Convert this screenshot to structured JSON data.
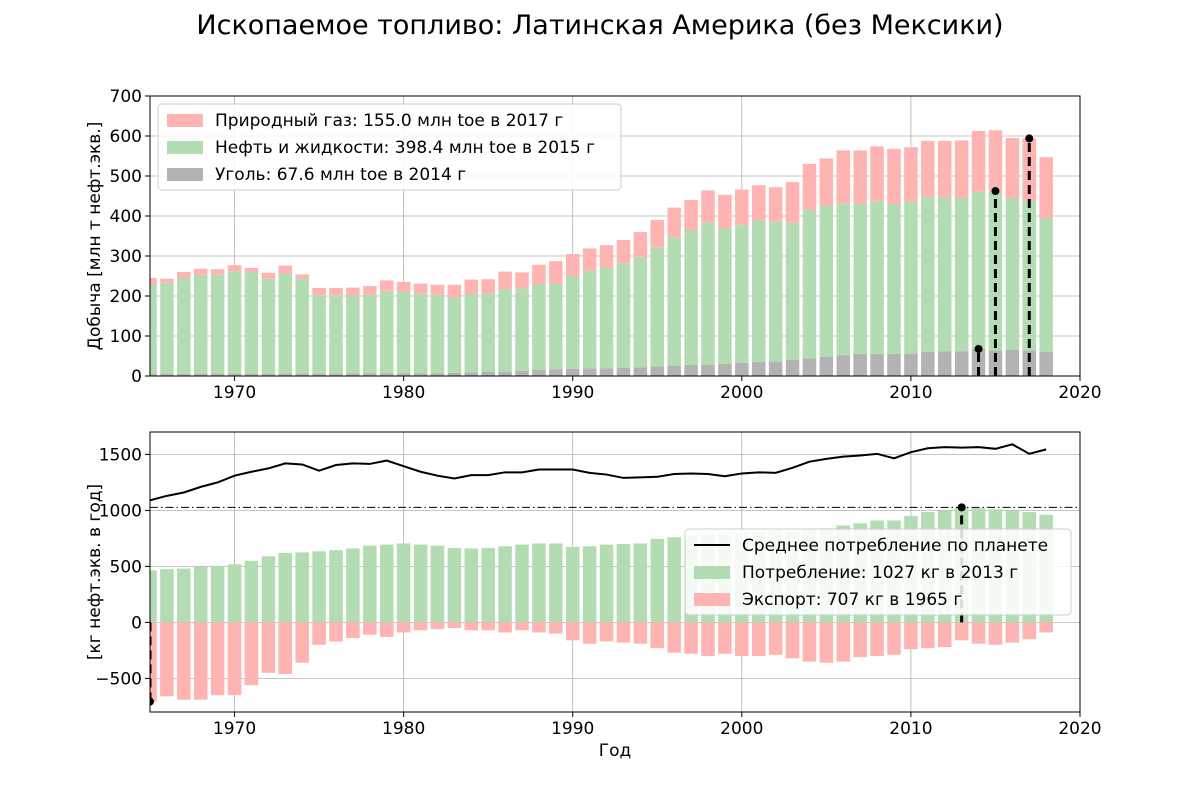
{
  "figure_title": "Ископаемое топливо: Латинская Америка (без Мексики)",
  "chart_data": [
    {
      "type": "bar",
      "stacked": true,
      "ylabel": "Добыча [млн т нефт.экв.]",
      "xlabel": "",
      "xlim": [
        1965,
        2020
      ],
      "ylim": [
        0,
        700
      ],
      "xticks": [
        1970,
        1980,
        1990,
        2000,
        2010,
        2020
      ],
      "yticks": [
        0,
        100,
        200,
        300,
        400,
        500,
        600,
        700
      ],
      "grid": true,
      "legend_position": "top-left",
      "x": [
        1965,
        1966,
        1967,
        1968,
        1969,
        1970,
        1971,
        1972,
        1973,
        1974,
        1975,
        1976,
        1977,
        1978,
        1979,
        1980,
        1981,
        1982,
        1983,
        1984,
        1985,
        1986,
        1987,
        1988,
        1989,
        1990,
        1991,
        1992,
        1993,
        1994,
        1995,
        1996,
        1997,
        1998,
        1999,
        2000,
        2001,
        2002,
        2003,
        2004,
        2005,
        2006,
        2007,
        2008,
        2009,
        2010,
        2011,
        2012,
        2013,
        2014,
        2015,
        2016,
        2017,
        2018
      ],
      "series": [
        {
          "name": "Уголь: 67.6 млн toe в 2014 г",
          "color": "#b3b3b3",
          "values": [
            5,
            5,
            5,
            6,
            6,
            6,
            6,
            6,
            6,
            6,
            6,
            6,
            7,
            7,
            7,
            7,
            7,
            7,
            8,
            9,
            10,
            11,
            13,
            15,
            17,
            18,
            19,
            19,
            20,
            22,
            24,
            26,
            28,
            28,
            30,
            33,
            35,
            36,
            40,
            44,
            48,
            52,
            55,
            55,
            55,
            55,
            60,
            62,
            62,
            67.6,
            64,
            65,
            64,
            60
          ]
        },
        {
          "name": "Нефть и жидкости: 398.4 млн toe в 2015 г",
          "color": "#b3dcb3",
          "values": [
            225,
            228,
            240,
            247,
            247,
            256,
            254,
            237,
            250,
            238,
            196,
            196,
            194,
            196,
            206,
            204,
            200,
            196,
            188,
            196,
            196,
            206,
            206,
            215,
            214,
            232,
            244,
            252,
            262,
            276,
            298,
            321,
            337,
            356,
            339,
            345,
            354,
            350,
            343,
            372,
            378,
            380,
            375,
            383,
            375,
            381,
            388,
            384,
            383,
            393,
            398.4,
            380,
            375,
            335
          ]
        },
        {
          "name": "Природный газ: 155.0 млн toe в 2017 г",
          "color": "#ffb3b3",
          "values": [
            15,
            10,
            15,
            15,
            14,
            15,
            10,
            15,
            20,
            10,
            18,
            18,
            20,
            22,
            26,
            24,
            24,
            25,
            32,
            36,
            36,
            44,
            40,
            48,
            56,
            55,
            56,
            56,
            58,
            62,
            68,
            74,
            75,
            80,
            84,
            88,
            88,
            86,
            102,
            114,
            118,
            132,
            134,
            136,
            138,
            136,
            140,
            142,
            144,
            152,
            152,
            150,
            155,
            152
          ]
        }
      ],
      "markers": [
        {
          "x": 2014,
          "y": 67.6
        },
        {
          "x": 2015,
          "y": 462.4
        },
        {
          "x": 2017,
          "y": 594
        }
      ]
    },
    {
      "type": "bar",
      "ylabel": "[кг нефт.экв. в год]",
      "xlabel": "Год",
      "xlim": [
        1965,
        2020
      ],
      "ylim": [
        -800,
        1700
      ],
      "xticks": [
        1970,
        1980,
        1990,
        2000,
        2010,
        2020
      ],
      "yticks": [
        -500,
        0,
        500,
        1000,
        1500
      ],
      "grid": true,
      "legend_position": "center-right",
      "reference_line": 1027,
      "x": [
        1965,
        1966,
        1967,
        1968,
        1969,
        1970,
        1971,
        1972,
        1973,
        1974,
        1975,
        1976,
        1977,
        1978,
        1979,
        1980,
        1981,
        1982,
        1983,
        1984,
        1985,
        1986,
        1987,
        1988,
        1989,
        1990,
        1991,
        1992,
        1993,
        1994,
        1995,
        1996,
        1997,
        1998,
        1999,
        2000,
        2001,
        2002,
        2003,
        2004,
        2005,
        2006,
        2007,
        2008,
        2009,
        2010,
        2011,
        2012,
        2013,
        2014,
        2015,
        2016,
        2017,
        2018
      ],
      "line": {
        "name": "Среднее потребление по планете",
        "color": "#000000",
        "values": [
          1090,
          1130,
          1160,
          1210,
          1250,
          1310,
          1345,
          1375,
          1420,
          1410,
          1355,
          1405,
          1420,
          1415,
          1445,
          1395,
          1345,
          1310,
          1285,
          1315,
          1315,
          1340,
          1340,
          1365,
          1365,
          1365,
          1335,
          1320,
          1290,
          1295,
          1300,
          1325,
          1330,
          1325,
          1305,
          1330,
          1340,
          1335,
          1380,
          1435,
          1460,
          1480,
          1490,
          1505,
          1465,
          1520,
          1555,
          1565,
          1560,
          1565,
          1550,
          1590,
          1505,
          1545
        ]
      },
      "series": [
        {
          "name": "Потребление: 1027 кг в 2013 г",
          "color": "#b3dcb3",
          "values": [
            465,
            475,
            480,
            495,
            505,
            520,
            550,
            590,
            620,
            625,
            635,
            645,
            660,
            685,
            695,
            705,
            695,
            685,
            665,
            660,
            665,
            680,
            695,
            705,
            705,
            675,
            680,
            695,
            700,
            705,
            745,
            760,
            775,
            790,
            800,
            800,
            810,
            820,
            810,
            830,
            840,
            865,
            885,
            910,
            910,
            950,
            985,
            1000,
            1027,
            1020,
            1010,
            1000,
            985,
            960
          ]
        },
        {
          "name": "Экспорт: 707 кг в 1965 г",
          "color": "#ffb3b3",
          "values": [
            -707,
            -660,
            -690,
            -690,
            -650,
            -650,
            -560,
            -450,
            -460,
            -360,
            -200,
            -170,
            -140,
            -110,
            -130,
            -90,
            -70,
            -60,
            -50,
            -70,
            -70,
            -90,
            -70,
            -90,
            -100,
            -160,
            -190,
            -170,
            -180,
            -190,
            -230,
            -270,
            -280,
            -300,
            -280,
            -300,
            -300,
            -290,
            -320,
            -350,
            -360,
            -350,
            -310,
            -300,
            -290,
            -240,
            -230,
            -220,
            -160,
            -190,
            -200,
            -180,
            -150,
            -90
          ]
        }
      ],
      "markers": [
        {
          "x": 2013,
          "y": 1027
        },
        {
          "x": 1965,
          "y": -707
        }
      ]
    }
  ]
}
